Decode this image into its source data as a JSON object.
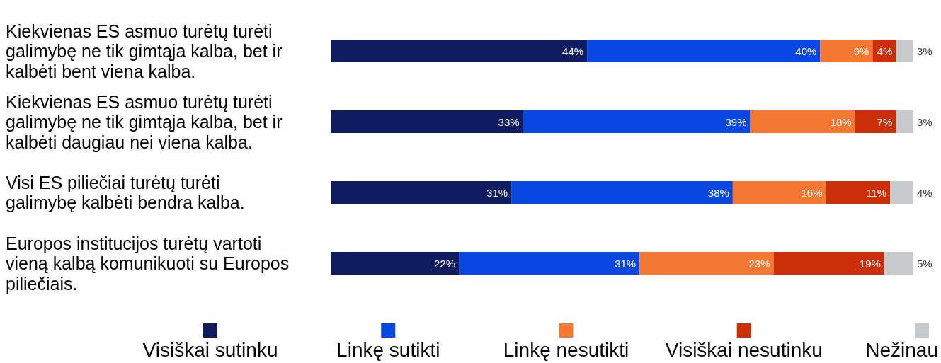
{
  "chart_data": {
    "type": "bar",
    "orientation": "horizontal",
    "stacked": true,
    "tick_labels": "y",
    "legend": "bottom",
    "categories": [
      "Kiekvienas ES asmuo turėtų turėti galimybę ne tik gimtąja kalba, bet ir kalbėti bent viena kalba.",
      "Kiekvienas ES asmuo turėtų turėti galimybę ne tik gimtąja kalba, bet ir kalbėti daugiau nei viena kalba.",
      "Visi ES piliečiai turėtų turėti galimybę kalbėti bendra kalba.",
      "Europos institucijos turėtų vartoti vieną kalbą komunikuoti su Europos piliečiais."
    ],
    "series": [
      {
        "name": "Visiškai sutinku",
        "color": "#101c60",
        "values": [
          44,
          33,
          31,
          22
        ],
        "value_labels": [
          "44%",
          "33%",
          "31%",
          "22%"
        ]
      },
      {
        "name": "Linkę sutikti",
        "color": "#0848e0",
        "values": [
          40,
          39,
          38,
          31
        ],
        "value_labels": [
          "40%",
          "39%",
          "38%",
          "31%"
        ]
      },
      {
        "name": "Linkę nesutikti",
        "color": "#f47832",
        "values": [
          9,
          18,
          16,
          23
        ],
        "value_labels": [
          "9%",
          "18%",
          "16%",
          "23%"
        ]
      },
      {
        "name": "Visiškai nesutinku",
        "color": "#cc2e08",
        "values": [
          4,
          7,
          11,
          19
        ],
        "value_labels": [
          "4%",
          "7%",
          "11%",
          "19%"
        ]
      },
      {
        "name": "Nežinau",
        "color": "#c8c9cb",
        "values": [
          3,
          3,
          4,
          5
        ],
        "value_labels": [
          "3%",
          "3%",
          "4%",
          "5%"
        ]
      }
    ]
  }
}
